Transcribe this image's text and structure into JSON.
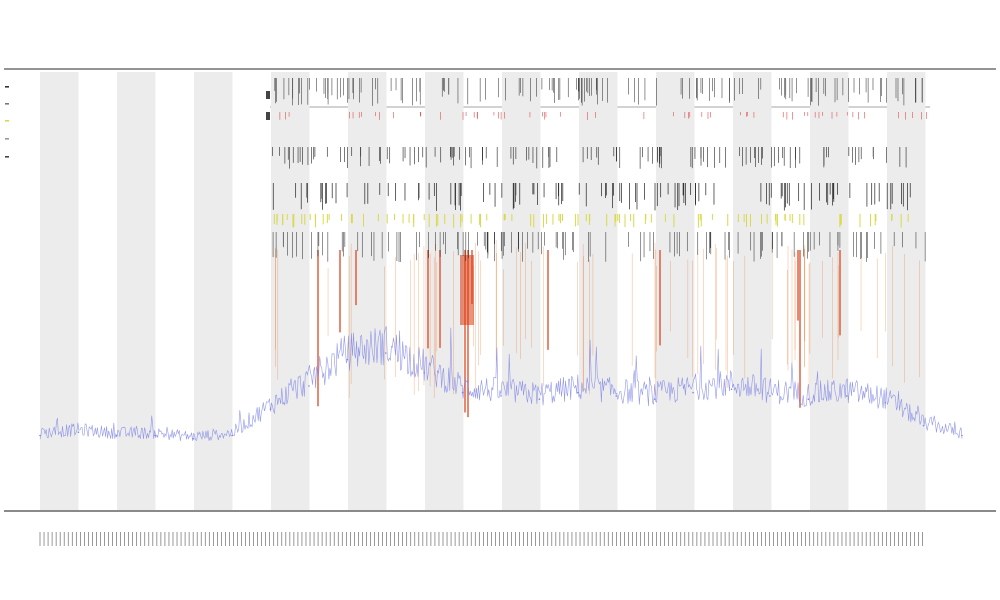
{
  "figure": {
    "title": "",
    "subtitle_1": "",
    "subtitle_2": ""
  },
  "colors": {
    "shade": "#ececec",
    "signal": "#7f86e6",
    "heat": "#e86a1a",
    "heat_strong": "#d93a10",
    "yellow": "#d9d94a",
    "tick": "#222222",
    "red_tick": "#e05050"
  },
  "chart_data": {
    "type": "line",
    "title": "",
    "xlabel": "",
    "ylabel": "",
    "legend_position": "left",
    "grid": false,
    "num_shaded_bands": 12,
    "x": [
      0,
      50,
      100,
      150,
      200,
      250,
      300,
      350,
      400,
      450,
      500,
      550,
      600,
      650,
      700,
      750,
      800,
      850,
      900,
      950,
      1000,
      1050,
      1100,
      1150,
      1200
    ],
    "xlim": [
      0,
      1200
    ],
    "series": [
      {
        "name": "",
        "values": [
          0.05,
          0.06,
          0.05,
          0.05,
          0.04,
          0.05,
          0.13,
          0.2,
          0.28,
          0.3,
          0.24,
          0.18,
          0.17,
          0.16,
          0.18,
          0.17,
          0.16,
          0.18,
          0.19,
          0.17,
          0.16,
          0.17,
          0.15,
          0.08,
          0.05
        ]
      }
    ],
    "ylim": [
      0,
      1
    ],
    "event_tracks": [
      "",
      "",
      "",
      "",
      "",
      "",
      "",
      "",
      ""
    ]
  }
}
